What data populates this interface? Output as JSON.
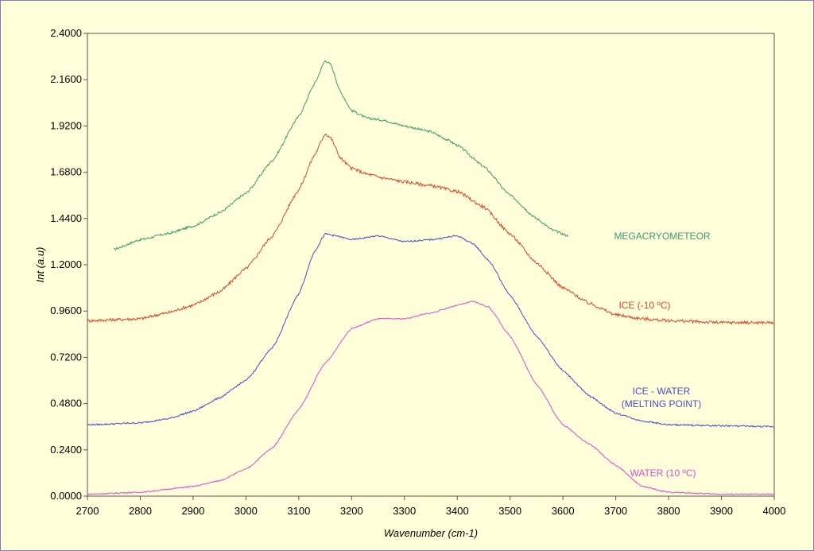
{
  "chart_data": {
    "type": "line",
    "title": "",
    "xlabel": "Wavenumber (cm-1)",
    "ylabel": "Int (a.u)",
    "xlim": [
      2700,
      4000
    ],
    "ylim": [
      0,
      2.4
    ],
    "x_ticks": [
      2700,
      2800,
      2900,
      3000,
      3100,
      3200,
      3300,
      3400,
      3500,
      3600,
      3700,
      3800,
      3900,
      4000
    ],
    "y_ticks": [
      "0.0000",
      "0.2400",
      "0.4800",
      "0.7200",
      "0.9600",
      "1.2000",
      "1.4400",
      "1.6800",
      "1.9200",
      "2.1600",
      "2.4000"
    ],
    "grid": false,
    "series": [
      {
        "name": "MEGACRYOMETEOR",
        "color": "#3d9a6e",
        "points": [
          [
            2750,
            1.28
          ],
          [
            2800,
            1.33
          ],
          [
            2850,
            1.36
          ],
          [
            2900,
            1.4
          ],
          [
            2950,
            1.47
          ],
          [
            3000,
            1.57
          ],
          [
            3050,
            1.74
          ],
          [
            3100,
            1.97
          ],
          [
            3130,
            2.14
          ],
          [
            3150,
            2.26
          ],
          [
            3160,
            2.24
          ],
          [
            3180,
            2.09
          ],
          [
            3200,
            2.0
          ],
          [
            3230,
            1.96
          ],
          [
            3260,
            1.95
          ],
          [
            3300,
            1.92
          ],
          [
            3350,
            1.89
          ],
          [
            3380,
            1.85
          ],
          [
            3400,
            1.82
          ],
          [
            3450,
            1.71
          ],
          [
            3500,
            1.56
          ],
          [
            3550,
            1.44
          ],
          [
            3580,
            1.38
          ],
          [
            3610,
            1.35
          ]
        ]
      },
      {
        "name": "ICE (-10 ºC)",
        "color": "#e0442a",
        "points": [
          [
            2700,
            0.91
          ],
          [
            2800,
            0.92
          ],
          [
            2850,
            0.95
          ],
          [
            2900,
            0.99
          ],
          [
            2950,
            1.06
          ],
          [
            3000,
            1.18
          ],
          [
            3050,
            1.35
          ],
          [
            3100,
            1.59
          ],
          [
            3130,
            1.77
          ],
          [
            3150,
            1.88
          ],
          [
            3160,
            1.86
          ],
          [
            3180,
            1.75
          ],
          [
            3200,
            1.7
          ],
          [
            3230,
            1.67
          ],
          [
            3260,
            1.65
          ],
          [
            3300,
            1.63
          ],
          [
            3350,
            1.61
          ],
          [
            3400,
            1.58
          ],
          [
            3450,
            1.5
          ],
          [
            3500,
            1.36
          ],
          [
            3550,
            1.21
          ],
          [
            3600,
            1.08
          ],
          [
            3650,
            1.0
          ],
          [
            3700,
            0.94
          ],
          [
            3750,
            0.92
          ],
          [
            3800,
            0.91
          ],
          [
            3900,
            0.9
          ],
          [
            4000,
            0.9
          ]
        ]
      },
      {
        "name": "ICE - WATER (MELTING POINT)",
        "color": "#4a4acd",
        "points": [
          [
            2700,
            0.37
          ],
          [
            2800,
            0.38
          ],
          [
            2850,
            0.4
          ],
          [
            2900,
            0.44
          ],
          [
            2950,
            0.51
          ],
          [
            3000,
            0.6
          ],
          [
            3050,
            0.77
          ],
          [
            3100,
            1.05
          ],
          [
            3130,
            1.27
          ],
          [
            3150,
            1.36
          ],
          [
            3170,
            1.35
          ],
          [
            3200,
            1.33
          ],
          [
            3250,
            1.35
          ],
          [
            3300,
            1.32
          ],
          [
            3350,
            1.33
          ],
          [
            3400,
            1.35
          ],
          [
            3430,
            1.31
          ],
          [
            3460,
            1.22
          ],
          [
            3500,
            1.04
          ],
          [
            3550,
            0.83
          ],
          [
            3600,
            0.65
          ],
          [
            3650,
            0.52
          ],
          [
            3700,
            0.43
          ],
          [
            3750,
            0.39
          ],
          [
            3800,
            0.37
          ],
          [
            3900,
            0.365
          ],
          [
            4000,
            0.36
          ]
        ]
      },
      {
        "name": "WATER (10 ºC)",
        "color": "#e04ad2",
        "points": [
          [
            2700,
            0.01
          ],
          [
            2800,
            0.02
          ],
          [
            2900,
            0.05
          ],
          [
            2950,
            0.08
          ],
          [
            3000,
            0.14
          ],
          [
            3050,
            0.25
          ],
          [
            3100,
            0.45
          ],
          [
            3150,
            0.69
          ],
          [
            3200,
            0.87
          ],
          [
            3250,
            0.92
          ],
          [
            3300,
            0.92
          ],
          [
            3350,
            0.95
          ],
          [
            3400,
            0.99
          ],
          [
            3430,
            1.01
          ],
          [
            3460,
            0.98
          ],
          [
            3500,
            0.83
          ],
          [
            3550,
            0.58
          ],
          [
            3600,
            0.37
          ],
          [
            3650,
            0.27
          ],
          [
            3700,
            0.16
          ],
          [
            3750,
            0.05
          ],
          [
            3800,
            0.02
          ],
          [
            3900,
            0.01
          ],
          [
            4000,
            0.01
          ]
        ]
      }
    ],
    "legend": "inline labels at right"
  },
  "labels": {
    "megacryometeor": "MEGACRYOMETEOR",
    "ice": "ICE (-10 ºC)",
    "ice_water_1": "ICE - WATER",
    "ice_water_2": "(MELTING POINT)",
    "water": "WATER (10 ºC)"
  }
}
